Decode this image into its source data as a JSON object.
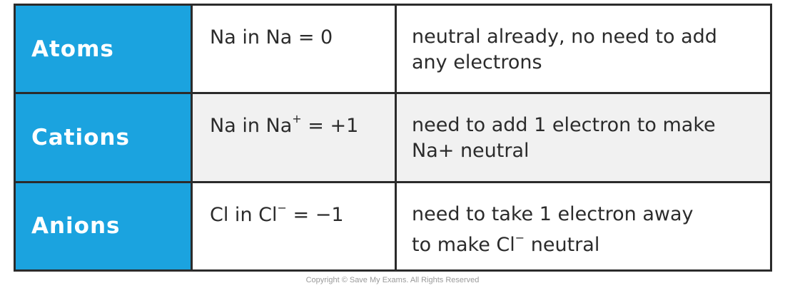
{
  "rows": [
    {
      "label": "Atoms",
      "value_prefix": "Na in Na",
      "value_sup": "",
      "value_suffix": " = 0",
      "description_line1": "neutral already, no need to add",
      "description_line2": "any electrons"
    },
    {
      "label": "Cations",
      "value_prefix": "Na in Na",
      "value_sup": "+",
      "value_suffix": " = +1",
      "description_line1": "need to add 1 electron to make",
      "description_line2": "Na+ neutral"
    },
    {
      "label": "Anions",
      "value_prefix": "Cl in Cl",
      "value_sup": "−",
      "value_suffix": " = −1",
      "description_line1": "need to take 1 electron away",
      "description_line2": "to make Cl",
      "description_line2_sup": "−",
      "description_line2_suffix": " neutral"
    }
  ],
  "copyright": "Copyright © Save My Exams. All Rights Reserved",
  "colors": {
    "header_blue": "#1ba3df",
    "border": "#2b2b2b",
    "alt_row": "#f1f1f1"
  }
}
